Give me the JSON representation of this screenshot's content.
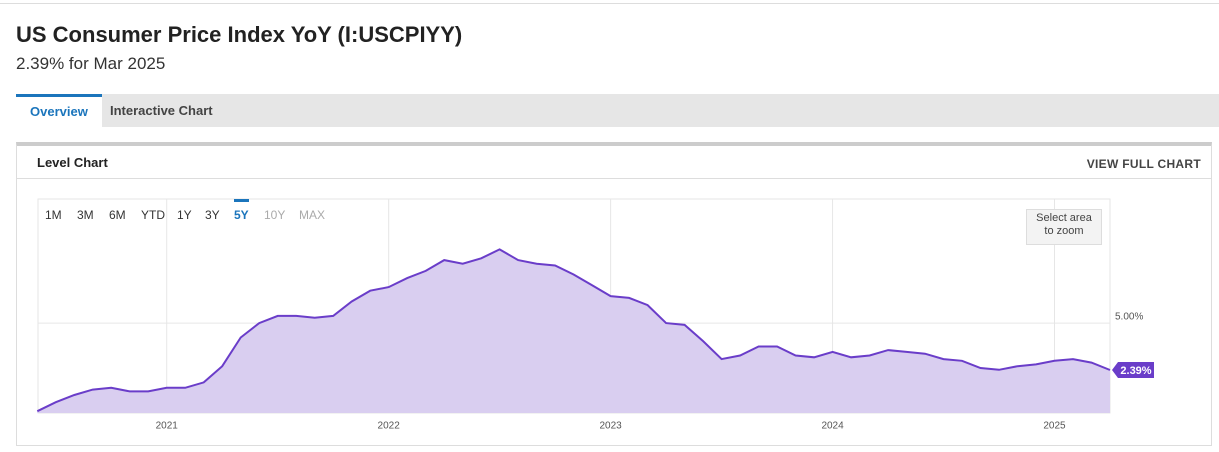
{
  "header": {
    "title": "US Consumer Price Index YoY (I:USCPIYY)",
    "subtitle": "2.39% for Mar 2025"
  },
  "tabs": {
    "items": [
      "Overview",
      "Interactive Chart"
    ],
    "active_index": 0
  },
  "card": {
    "title": "Level Chart",
    "action": "VIEW FULL CHART"
  },
  "controls": {
    "ranges": [
      "1M",
      "3M",
      "6M",
      "YTD",
      "1Y",
      "3Y",
      "5Y",
      "10Y",
      "MAX"
    ],
    "active_index": 6,
    "disabled_indices": [
      7,
      8
    ],
    "zoom_hint": [
      "Select area",
      "to zoom"
    ]
  },
  "chart_data": {
    "type": "area",
    "x": [
      "2020-05",
      "2020-06",
      "2020-07",
      "2020-08",
      "2020-09",
      "2020-10",
      "2020-11",
      "2020-12",
      "2021-01",
      "2021-02",
      "2021-03",
      "2021-04",
      "2021-05",
      "2021-06",
      "2021-07",
      "2021-08",
      "2021-09",
      "2021-10",
      "2021-11",
      "2021-12",
      "2022-01",
      "2022-02",
      "2022-03",
      "2022-04",
      "2022-05",
      "2022-06",
      "2022-07",
      "2022-08",
      "2022-09",
      "2022-10",
      "2022-11",
      "2022-12",
      "2023-01",
      "2023-02",
      "2023-03",
      "2023-04",
      "2023-05",
      "2023-06",
      "2023-07",
      "2023-08",
      "2023-09",
      "2023-10",
      "2023-11",
      "2023-12",
      "2024-01",
      "2024-02",
      "2024-03",
      "2024-04",
      "2024-05",
      "2024-06",
      "2024-07",
      "2024-08",
      "2024-09",
      "2024-10",
      "2024-11",
      "2024-12",
      "2025-01",
      "2025-02",
      "2025-03"
    ],
    "series": [
      {
        "name": "US Consumer Price Index YoY",
        "color": "#6a3dc9",
        "fill": "#d9cef0",
        "values": [
          0.1,
          0.6,
          1.0,
          1.3,
          1.4,
          1.2,
          1.2,
          1.4,
          1.4,
          1.7,
          2.6,
          4.2,
          5.0,
          5.4,
          5.4,
          5.3,
          5.4,
          6.2,
          6.8,
          7.0,
          7.5,
          7.9,
          8.5,
          8.3,
          8.6,
          9.1,
          8.5,
          8.3,
          8.2,
          7.7,
          7.1,
          6.5,
          6.4,
          6.0,
          5.0,
          4.9,
          4.0,
          3.0,
          3.2,
          3.7,
          3.7,
          3.2,
          3.1,
          3.4,
          3.1,
          3.2,
          3.5,
          3.4,
          3.3,
          3.0,
          2.9,
          2.5,
          2.4,
          2.6,
          2.7,
          2.9,
          3.0,
          2.8,
          2.39
        ],
        "value_labels": [
          null,
          null,
          null,
          null,
          null,
          null,
          null,
          null,
          null,
          null,
          null,
          null,
          null,
          null,
          null,
          null,
          null,
          null,
          null,
          null,
          null,
          null,
          null,
          null,
          null,
          null,
          null,
          null,
          null,
          null,
          null,
          null,
          null,
          null,
          null,
          null,
          null,
          null,
          null,
          null,
          null,
          null,
          null,
          null,
          null,
          null,
          null,
          null,
          null,
          null,
          null,
          null,
          null,
          null,
          null,
          null,
          null,
          null,
          "2.39%"
        ]
      }
    ],
    "xlim": [
      2020.42,
      2025.25
    ],
    "xticks": [
      2021,
      2022,
      2023,
      2024,
      2025
    ],
    "ylim": [
      0,
      11.9
    ],
    "yticks": [
      {
        "value": 5,
        "label": "5.00%"
      }
    ],
    "grid": true
  }
}
